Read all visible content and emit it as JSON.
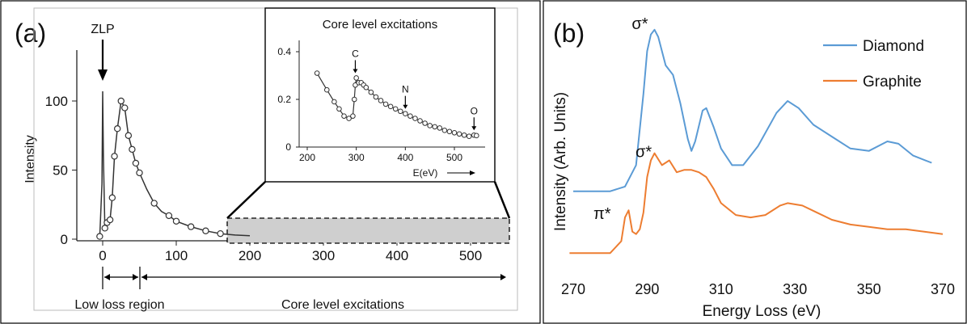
{
  "chart_data": [
    {
      "panel_label": "(a)",
      "type": "line",
      "ylabel": "Intensity",
      "xticks": [
        0,
        100,
        200,
        300,
        400,
        500
      ],
      "yticks": [
        0,
        50,
        100
      ],
      "xlim": [
        -50,
        560
      ],
      "ylim": [
        0,
        120
      ],
      "annotations": {
        "zlp": "ZLP",
        "low_loss": "Low loss region",
        "core": "Core level excitations"
      },
      "series": [
        {
          "x": [
            -4,
            -1,
            0,
            1,
            3,
            6,
            10,
            13,
            16,
            20,
            25,
            30,
            35,
            40,
            45,
            50,
            60,
            70,
            80,
            90,
            100,
            120,
            140,
            160,
            180,
            200
          ],
          "y": [
            2,
            40,
            107,
            60,
            8,
            12,
            14,
            30,
            60,
            80,
            100,
            95,
            75,
            65,
            55,
            48,
            36,
            26,
            20,
            17,
            13,
            9,
            6,
            4,
            3,
            2.5
          ]
        }
      ],
      "markers_x": [
        -4,
        3,
        6,
        10,
        13,
        16,
        20,
        25,
        30,
        35,
        40,
        45,
        50,
        70,
        90,
        100,
        120,
        140,
        160
      ],
      "inset": {
        "title": "Core level excitations",
        "xlabel": "E(eV)",
        "xticks": [
          200,
          300,
          400,
          500
        ],
        "yticks": [
          0,
          0.2,
          0.4
        ],
        "xlim": [
          195,
          560
        ],
        "ylim": [
          0,
          0.43
        ],
        "edge_labels": [
          {
            "label": "C",
            "x": 298,
            "y": 0.29
          },
          {
            "label": "N",
            "x": 400,
            "y": 0.14
          },
          {
            "label": "O",
            "x": 540,
            "y": 0.05
          }
        ],
        "x": [
          220,
          240,
          255,
          265,
          275,
          285,
          293,
          296,
          298,
          300,
          305,
          310,
          315,
          320,
          330,
          340,
          350,
          360,
          370,
          380,
          390,
          400,
          410,
          420,
          430,
          440,
          450,
          460,
          470,
          480,
          490,
          500,
          510,
          520,
          530,
          540,
          545
        ],
        "y": [
          0.31,
          0.24,
          0.19,
          0.16,
          0.13,
          0.12,
          0.13,
          0.2,
          0.26,
          0.29,
          0.27,
          0.27,
          0.26,
          0.25,
          0.23,
          0.21,
          0.195,
          0.18,
          0.17,
          0.16,
          0.15,
          0.14,
          0.13,
          0.12,
          0.11,
          0.1,
          0.09,
          0.085,
          0.08,
          0.07,
          0.065,
          0.06,
          0.055,
          0.05,
          0.045,
          0.05,
          0.048
        ]
      }
    },
    {
      "panel_label": "(b)",
      "type": "line",
      "xlabel": "Energy Loss (eV)",
      "ylabel": "Intensity (Arb. Units)",
      "xticks": [
        270,
        290,
        310,
        330,
        350,
        370
      ],
      "xlim": [
        268,
        372
      ],
      "ylim": [
        0,
        100
      ],
      "peak_labels": [
        {
          "label": "σ*",
          "x": 292,
          "y": 98
        },
        {
          "label": "σ*",
          "x": 293,
          "y": 44
        },
        {
          "label": "π*",
          "x": 285,
          "y": 18
        }
      ],
      "series": [
        {
          "name": "Diamond",
          "color": "#5b9bd5",
          "x": [
            270,
            280,
            284,
            287,
            289,
            290,
            291,
            292,
            293,
            295,
            297,
            299,
            301,
            302,
            303,
            305,
            306,
            308,
            310,
            313,
            316,
            320,
            325,
            328,
            331,
            335,
            340,
            345,
            350,
            355,
            358,
            362,
            367
          ],
          "y": [
            29,
            29,
            31,
            40,
            70,
            88,
            95,
            97,
            94,
            82,
            78,
            66,
            51,
            46,
            50,
            63,
            64,
            56,
            47,
            40,
            40,
            48,
            62,
            67,
            64,
            57,
            52,
            47,
            46,
            50,
            49,
            44,
            41
          ]
        },
        {
          "name": "Graphite",
          "color": "#ed7d31",
          "x": [
            269,
            275,
            280,
            283,
            284,
            285,
            286,
            287,
            288,
            289,
            290,
            291,
            292,
            294,
            296,
            298,
            300,
            302,
            304,
            306,
            308,
            310,
            314,
            318,
            322,
            326,
            328,
            332,
            336,
            340,
            345,
            350,
            355,
            360,
            365,
            370
          ],
          "y": [
            3,
            3,
            3,
            8,
            18,
            21,
            12,
            11,
            13,
            20,
            35,
            42,
            45,
            40,
            42,
            37,
            38,
            38,
            37,
            35,
            30,
            24,
            19,
            18,
            19,
            23,
            24,
            23,
            20,
            17,
            15,
            14,
            13,
            13,
            12,
            11
          ]
        }
      ]
    }
  ]
}
